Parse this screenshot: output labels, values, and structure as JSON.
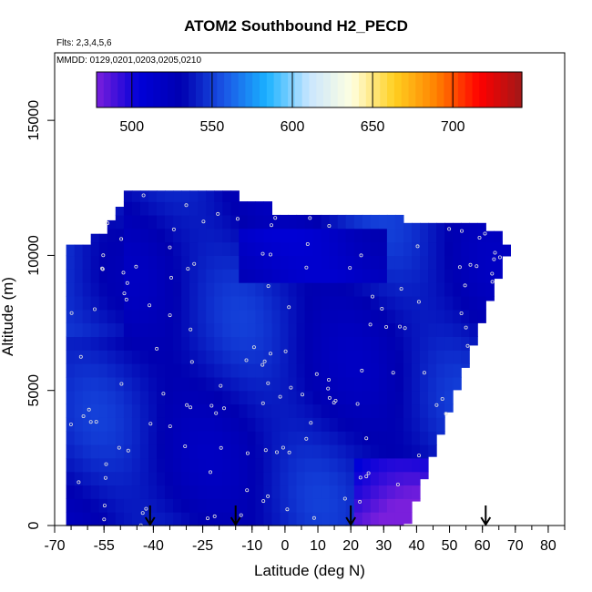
{
  "chart_data": {
    "type": "heatmap",
    "title": "ATOM2 Southbound H2_PECD",
    "notes": [
      "Flts: 2,3,4,5,6",
      "MMDD: 0129,0201,0203,0205,0210"
    ],
    "xlabel": "Latitude (deg N)",
    "ylabel": "Altitude (m)",
    "xlim": [
      -70,
      85
    ],
    "ylim": [
      0,
      17500
    ],
    "xticks": [
      -70,
      -55,
      -40,
      -25,
      -10,
      0,
      10,
      20,
      30,
      40,
      50,
      60,
      70,
      80
    ],
    "yticks": [
      0,
      5000,
      10000,
      15000
    ],
    "colorbar": {
      "range": [
        478,
        743
      ],
      "ticks": [
        500,
        550,
        600,
        650,
        700
      ],
      "stops": [
        "#7a1fdc",
        "#0000d8",
        "#0000b0",
        "#1a55e6",
        "#1ab2ff",
        "#c9e6ff",
        "#ffffe0",
        "#ffd020",
        "#ff8000",
        "#ff0000",
        "#a01818"
      ]
    },
    "surface_notes": "Altitude-latitude curtain of H2_PECD values, mostly 500-560, lowest (~480) near 25-35N below 2500 m",
    "arrow_latitudes": [
      -41,
      -15,
      20,
      61
    ],
    "grid": false,
    "legend": "top (colorbar)"
  }
}
